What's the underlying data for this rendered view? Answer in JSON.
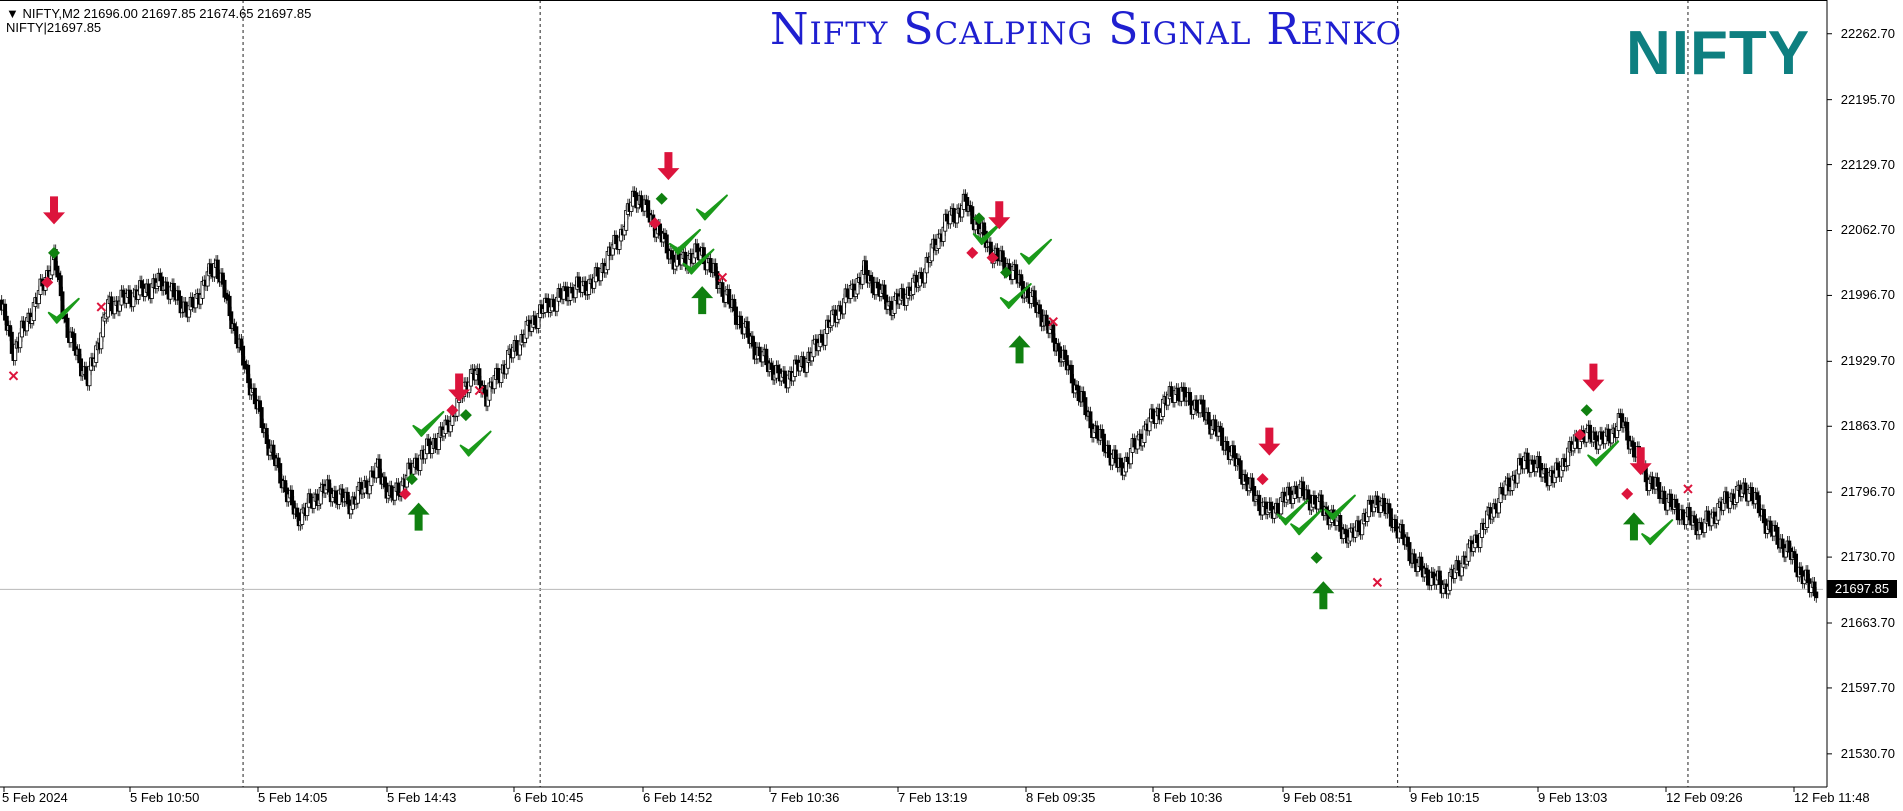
{
  "header": {
    "symbol_line": "▼ NIFTY,M2  21696.00 21697.85 21674.65 21697.85",
    "indicator_line": "NIFTY|21697.85"
  },
  "overlay": {
    "title": "Nifty Scalping  Signal Renko",
    "brand": "NIFTY"
  },
  "colors": {
    "sell": "#dc143c",
    "buy": "#108010",
    "check": "#1a9a1a",
    "title": "#1f1fd0",
    "brand": "#0e7f80"
  },
  "chart_data": {
    "type": "renko",
    "symbol": "NIFTY",
    "timeframe": "M2",
    "last_price": 21697.85,
    "last_price_label": "21697.85",
    "y_ticks": [
      "22262.70",
      "22195.70",
      "22129.70",
      "22062.70",
      "21996.70",
      "21929.70",
      "21863.70",
      "21796.70",
      "21730.70",
      "21663.70",
      "21597.70",
      "21530.70"
    ],
    "ylim": [
      21497,
      22297
    ],
    "x_ticks": [
      "5 Feb 2024",
      "5 Feb 10:50",
      "5 Feb 14:05",
      "5 Feb 14:43",
      "6 Feb 10:45",
      "6 Feb 14:52",
      "7 Feb 10:36",
      "7 Feb 13:19",
      "8 Feb 09:35",
      "8 Feb 10:36",
      "9 Feb 08:51",
      "9 Feb 10:15",
      "9 Feb 13:03",
      "12 Feb 09:26",
      "12 Feb 11:48"
    ],
    "session_separators": [
      36,
      80,
      207,
      250
    ],
    "price_path": [
      [
        0,
        21990
      ],
      [
        2,
        21940
      ],
      [
        5,
        21985
      ],
      [
        8,
        22035
      ],
      [
        10,
        21960
      ],
      [
        13,
        21910
      ],
      [
        16,
        21985
      ],
      [
        20,
        21998
      ],
      [
        24,
        22010
      ],
      [
        28,
        21980
      ],
      [
        32,
        22030
      ],
      [
        36,
        21930
      ],
      [
        40,
        21840
      ],
      [
        44,
        21770
      ],
      [
        48,
        21800
      ],
      [
        52,
        21785
      ],
      [
        56,
        21820
      ],
      [
        58,
        21790
      ],
      [
        62,
        21830
      ],
      [
        66,
        21860
      ],
      [
        70,
        21920
      ],
      [
        72,
        21895
      ],
      [
        76,
        21940
      ],
      [
        80,
        21980
      ],
      [
        84,
        22000
      ],
      [
        88,
        22010
      ],
      [
        92,
        22060
      ],
      [
        94,
        22100
      ],
      [
        96,
        22080
      ],
      [
        100,
        22030
      ],
      [
        104,
        22040
      ],
      [
        108,
        21990
      ],
      [
        112,
        21940
      ],
      [
        116,
        21910
      ],
      [
        120,
        21935
      ],
      [
        124,
        21980
      ],
      [
        128,
        22020
      ],
      [
        132,
        21985
      ],
      [
        136,
        22010
      ],
      [
        140,
        22070
      ],
      [
        143,
        22090
      ],
      [
        147,
        22040
      ],
      [
        150,
        22020
      ],
      [
        154,
        21980
      ],
      [
        158,
        21925
      ],
      [
        162,
        21860
      ],
      [
        166,
        21820
      ],
      [
        170,
        21865
      ],
      [
        174,
        21900
      ],
      [
        178,
        21880
      ],
      [
        182,
        21840
      ],
      [
        186,
        21790
      ],
      [
        188,
        21775
      ],
      [
        192,
        21800
      ],
      [
        196,
        21780
      ],
      [
        200,
        21750
      ],
      [
        204,
        21790
      ],
      [
        207,
        21760
      ],
      [
        210,
        21720
      ],
      [
        214,
        21700
      ],
      [
        218,
        21740
      ],
      [
        222,
        21790
      ],
      [
        226,
        21830
      ],
      [
        230,
        21810
      ],
      [
        234,
        21855
      ],
      [
        238,
        21850
      ],
      [
        240,
        21870
      ],
      [
        244,
        21810
      ],
      [
        248,
        21780
      ],
      [
        252,
        21760
      ],
      [
        256,
        21790
      ],
      [
        259,
        21800
      ],
      [
        262,
        21760
      ],
      [
        265,
        21735
      ],
      [
        268,
        21700
      ]
    ],
    "markers": [
      {
        "t": 7,
        "p": 22010,
        "kind": "sell-dot"
      },
      {
        "t": 8,
        "p": 22040,
        "kind": "buy-dot"
      },
      {
        "t": 8,
        "p": 22075,
        "kind": "sell-arrow"
      },
      {
        "t": 9,
        "p": 21975,
        "kind": "check"
      },
      {
        "t": 2,
        "p": 21915,
        "kind": "cross"
      },
      {
        "t": 15,
        "p": 21985,
        "kind": "cross"
      },
      {
        "t": 60,
        "p": 21795,
        "kind": "sell-dot"
      },
      {
        "t": 61,
        "p": 21810,
        "kind": "buy-dot"
      },
      {
        "t": 62,
        "p": 21780,
        "kind": "buy-arrow"
      },
      {
        "t": 63,
        "p": 21860,
        "kind": "check"
      },
      {
        "t": 67,
        "p": 21880,
        "kind": "sell-dot"
      },
      {
        "t": 68,
        "p": 21895,
        "kind": "sell-arrow"
      },
      {
        "t": 69,
        "p": 21875,
        "kind": "buy-dot"
      },
      {
        "t": 70,
        "p": 21840,
        "kind": "check"
      },
      {
        "t": 71,
        "p": 21900,
        "kind": "cross"
      },
      {
        "t": 97,
        "p": 22070,
        "kind": "sell-dot"
      },
      {
        "t": 98,
        "p": 22095,
        "kind": "buy-dot"
      },
      {
        "t": 99,
        "p": 22120,
        "kind": "sell-arrow"
      },
      {
        "t": 101,
        "p": 22045,
        "kind": "check"
      },
      {
        "t": 103,
        "p": 22025,
        "kind": "check"
      },
      {
        "t": 104,
        "p": 22000,
        "kind": "buy-arrow"
      },
      {
        "t": 105,
        "p": 22080,
        "kind": "check"
      },
      {
        "t": 107,
        "p": 22015,
        "kind": "cross"
      },
      {
        "t": 144,
        "p": 22040,
        "kind": "sell-dot"
      },
      {
        "t": 145,
        "p": 22075,
        "kind": "buy-dot"
      },
      {
        "t": 146,
        "p": 22055,
        "kind": "check"
      },
      {
        "t": 147,
        "p": 22035,
        "kind": "sell-dot"
      },
      {
        "t": 148,
        "p": 22070,
        "kind": "sell-arrow"
      },
      {
        "t": 149,
        "p": 22020,
        "kind": "buy-dot"
      },
      {
        "t": 150,
        "p": 21990,
        "kind": "check"
      },
      {
        "t": 151,
        "p": 21950,
        "kind": "buy-arrow"
      },
      {
        "t": 153,
        "p": 22035,
        "kind": "check"
      },
      {
        "t": 156,
        "p": 21970,
        "kind": "cross"
      },
      {
        "t": 187,
        "p": 21810,
        "kind": "sell-dot"
      },
      {
        "t": 188,
        "p": 21840,
        "kind": "sell-arrow"
      },
      {
        "t": 191,
        "p": 21770,
        "kind": "check"
      },
      {
        "t": 193,
        "p": 21760,
        "kind": "check"
      },
      {
        "t": 195,
        "p": 21730,
        "kind": "buy-dot"
      },
      {
        "t": 196,
        "p": 21700,
        "kind": "buy-arrow"
      },
      {
        "t": 198,
        "p": 21775,
        "kind": "check"
      },
      {
        "t": 204,
        "p": 21705,
        "kind": "cross"
      },
      {
        "t": 234,
        "p": 21855,
        "kind": "sell-dot"
      },
      {
        "t": 235,
        "p": 21880,
        "kind": "buy-dot"
      },
      {
        "t": 236,
        "p": 21905,
        "kind": "sell-arrow"
      },
      {
        "t": 237,
        "p": 21830,
        "kind": "check"
      },
      {
        "t": 241,
        "p": 21795,
        "kind": "sell-dot"
      },
      {
        "t": 242,
        "p": 21770,
        "kind": "buy-arrow"
      },
      {
        "t": 243,
        "p": 21820,
        "kind": "sell-arrow"
      },
      {
        "t": 245,
        "p": 21750,
        "kind": "check"
      },
      {
        "t": 250,
        "p": 21800,
        "kind": "cross"
      }
    ]
  }
}
